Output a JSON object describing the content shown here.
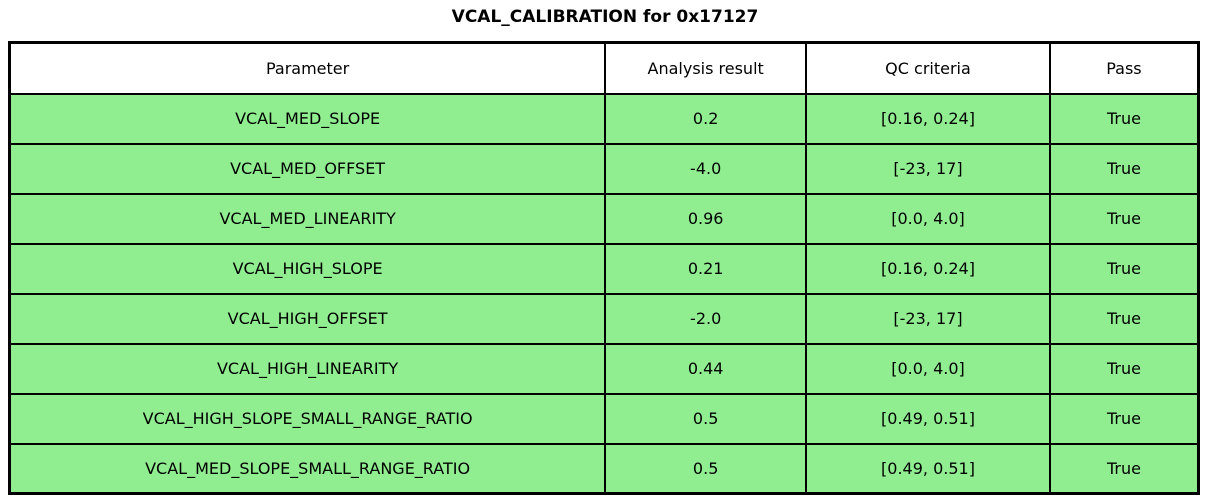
{
  "title": "VCAL_CALIBRATION for 0x17127",
  "colors": {
    "row_background": "#90EE90",
    "header_background": "#FFFFFF",
    "border": "#000000",
    "text": "#000000"
  },
  "table": {
    "headers": {
      "parameter": "Parameter",
      "analysis_result": "Analysis result",
      "qc_criteria": "QC criteria",
      "pass": "Pass"
    },
    "rows": [
      {
        "parameter": "VCAL_MED_SLOPE",
        "analysis_result": "0.2",
        "qc_criteria": "[0.16, 0.24]",
        "pass": "True"
      },
      {
        "parameter": "VCAL_MED_OFFSET",
        "analysis_result": "-4.0",
        "qc_criteria": "[-23, 17]",
        "pass": "True"
      },
      {
        "parameter": "VCAL_MED_LINEARITY",
        "analysis_result": "0.96",
        "qc_criteria": "[0.0, 4.0]",
        "pass": "True"
      },
      {
        "parameter": "VCAL_HIGH_SLOPE",
        "analysis_result": "0.21",
        "qc_criteria": "[0.16, 0.24]",
        "pass": "True"
      },
      {
        "parameter": "VCAL_HIGH_OFFSET",
        "analysis_result": "-2.0",
        "qc_criteria": "[-23, 17]",
        "pass": "True"
      },
      {
        "parameter": "VCAL_HIGH_LINEARITY",
        "analysis_result": "0.44",
        "qc_criteria": "[0.0, 4.0]",
        "pass": "True"
      },
      {
        "parameter": "VCAL_HIGH_SLOPE_SMALL_RANGE_RATIO",
        "analysis_result": "0.5",
        "qc_criteria": "[0.49, 0.51]",
        "pass": "True"
      },
      {
        "parameter": "VCAL_MED_SLOPE_SMALL_RANGE_RATIO",
        "analysis_result": "0.5",
        "qc_criteria": "[0.49, 0.51]",
        "pass": "True"
      }
    ]
  },
  "chart_data": {
    "type": "table",
    "title": "VCAL_CALIBRATION for 0x17127",
    "columns": [
      "Parameter",
      "Analysis result",
      "QC criteria",
      "Pass"
    ],
    "rows": [
      [
        "VCAL_MED_SLOPE",
        0.2,
        "[0.16, 0.24]",
        "True"
      ],
      [
        "VCAL_MED_OFFSET",
        -4.0,
        "[-23, 17]",
        "True"
      ],
      [
        "VCAL_MED_LINEARITY",
        0.96,
        "[0.0, 4.0]",
        "True"
      ],
      [
        "VCAL_HIGH_SLOPE",
        0.21,
        "[0.16, 0.24]",
        "True"
      ],
      [
        "VCAL_HIGH_OFFSET",
        -2.0,
        "[-23, 17]",
        "True"
      ],
      [
        "VCAL_HIGH_LINEARITY",
        0.44,
        "[0.0, 4.0]",
        "True"
      ],
      [
        "VCAL_HIGH_SLOPE_SMALL_RANGE_RATIO",
        0.5,
        "[0.49, 0.51]",
        "True"
      ],
      [
        "VCAL_MED_SLOPE_SMALL_RANGE_RATIO",
        0.5,
        "[0.49, 0.51]",
        "True"
      ]
    ],
    "layout": {
      "header_background": "#FFFFFF",
      "row_background": "#90EE90",
      "grid": true
    }
  }
}
